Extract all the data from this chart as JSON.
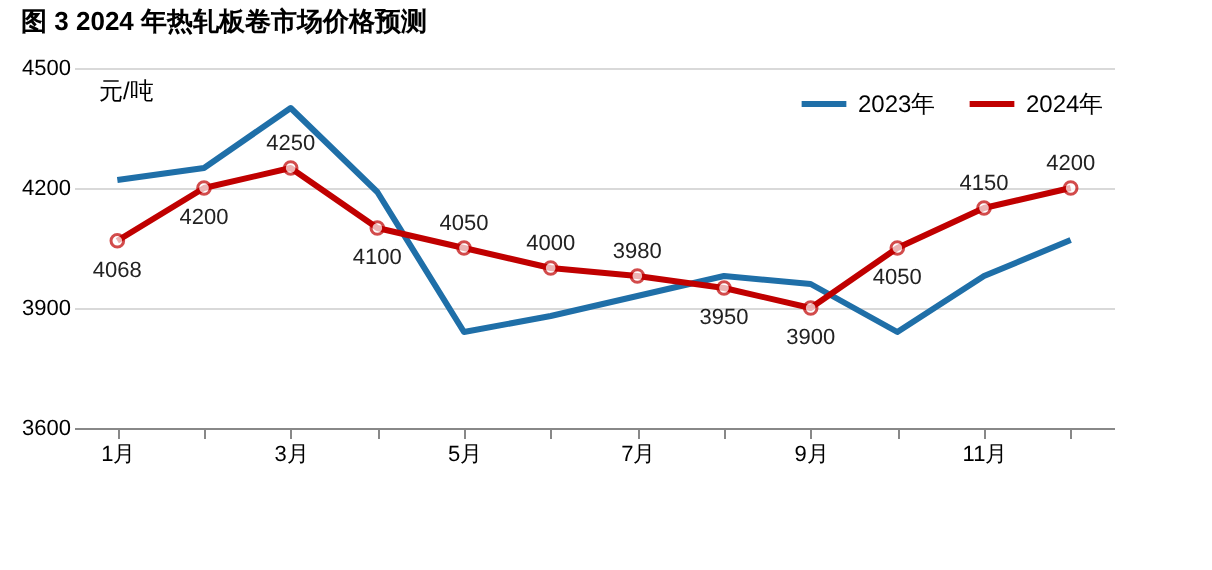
{
  "chart_data": {
    "type": "line",
    "title": "图 3 2024 年热轧板卷市场价格预测",
    "ylabel": "元/吨",
    "categories": [
      "1月",
      null,
      "3月",
      null,
      "5月",
      null,
      "7月",
      null,
      "9月",
      null,
      "11月",
      null
    ],
    "series": [
      {
        "name": "2023年",
        "color": "#1f6fa8",
        "marker": "none",
        "values": [
          4220,
          4250,
          4400,
          4190,
          3840,
          3880,
          3930,
          3980,
          3960,
          3840,
          3980,
          4070
        ]
      },
      {
        "name": "2024年",
        "color": "#c00000",
        "marker": "circle",
        "values": [
          4068,
          4200,
          4250,
          4100,
          4050,
          4000,
          3980,
          3950,
          3900,
          4050,
          4150,
          4200
        ],
        "value_labels": [
          "4068",
          "4200",
          "4250",
          "4100",
          "4050",
          "4000",
          "3980",
          "3950",
          "3900",
          "4050",
          "4150",
          "4200"
        ]
      }
    ],
    "ylim": [
      3600,
      4500
    ],
    "yticks": [
      3600,
      3900,
      4200,
      4500
    ],
    "grid": "y",
    "legend": "top right"
  }
}
